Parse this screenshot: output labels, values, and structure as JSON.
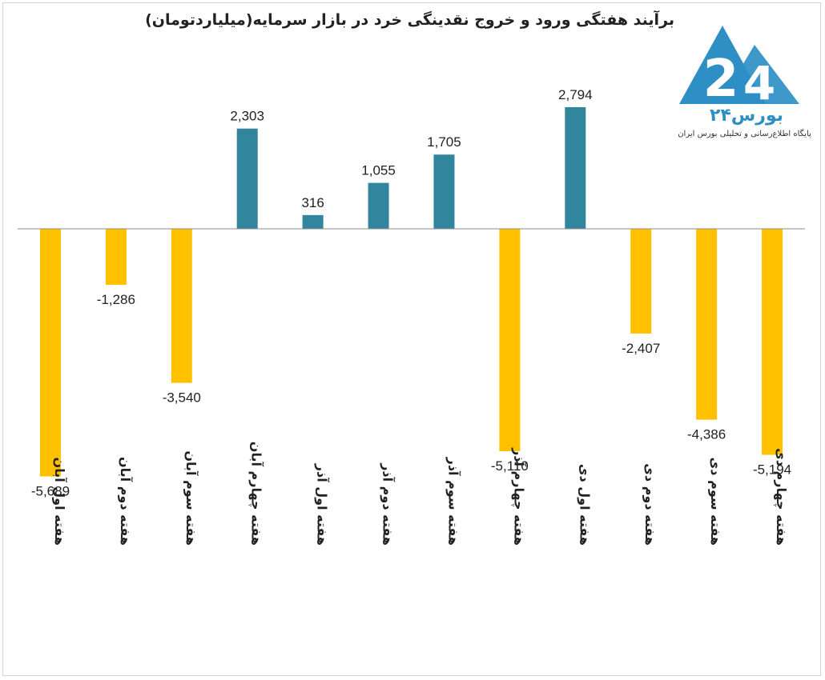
{
  "title": "برآیند هفتگی ورود و خروج نقدینگی خرد در بازار سرمایه(میلیاردتومان)",
  "logo": {
    "name": "بورس۲۴",
    "tagline": "پایگاه اطلاع‌رسانی و تحلیلی بورس ایران",
    "primary_color": "#2e8fc4"
  },
  "chart_data": {
    "type": "bar",
    "title": "برآیند هفتگی ورود و خروج نقدینگی خرد در بازار سرمایه(میلیاردتومان)",
    "categories": [
      "هفته اول آبان",
      "هفته دوم آبان",
      "هفته سوم آبان",
      "هفته چهارم آبان",
      "هفته اول آذر",
      "هفته دوم آذر",
      "هفته سوم آذر",
      "هفته چهارم آذر",
      "هفته اول دی",
      "هفته دوم دی",
      "هفته سوم دی",
      "هفته چهارم دی"
    ],
    "values": [
      -5689,
      -1286,
      -3540,
      2303,
      316,
      1055,
      1705,
      -5110,
      2794,
      -2407,
      -4386,
      -5194
    ],
    "value_labels": [
      "-5,689",
      "-1,286",
      "-3,540",
      "2,303",
      "316",
      "1,055",
      "1,705",
      "-5,110",
      "2,794",
      "-2,407",
      "-4,386",
      "-5,194"
    ],
    "positive_color": "#31859c",
    "negative_color": "#ffc000",
    "grid": false,
    "legend": "none",
    "ylim": [
      -6000,
      3000
    ],
    "xlabel": "",
    "ylabel": ""
  }
}
